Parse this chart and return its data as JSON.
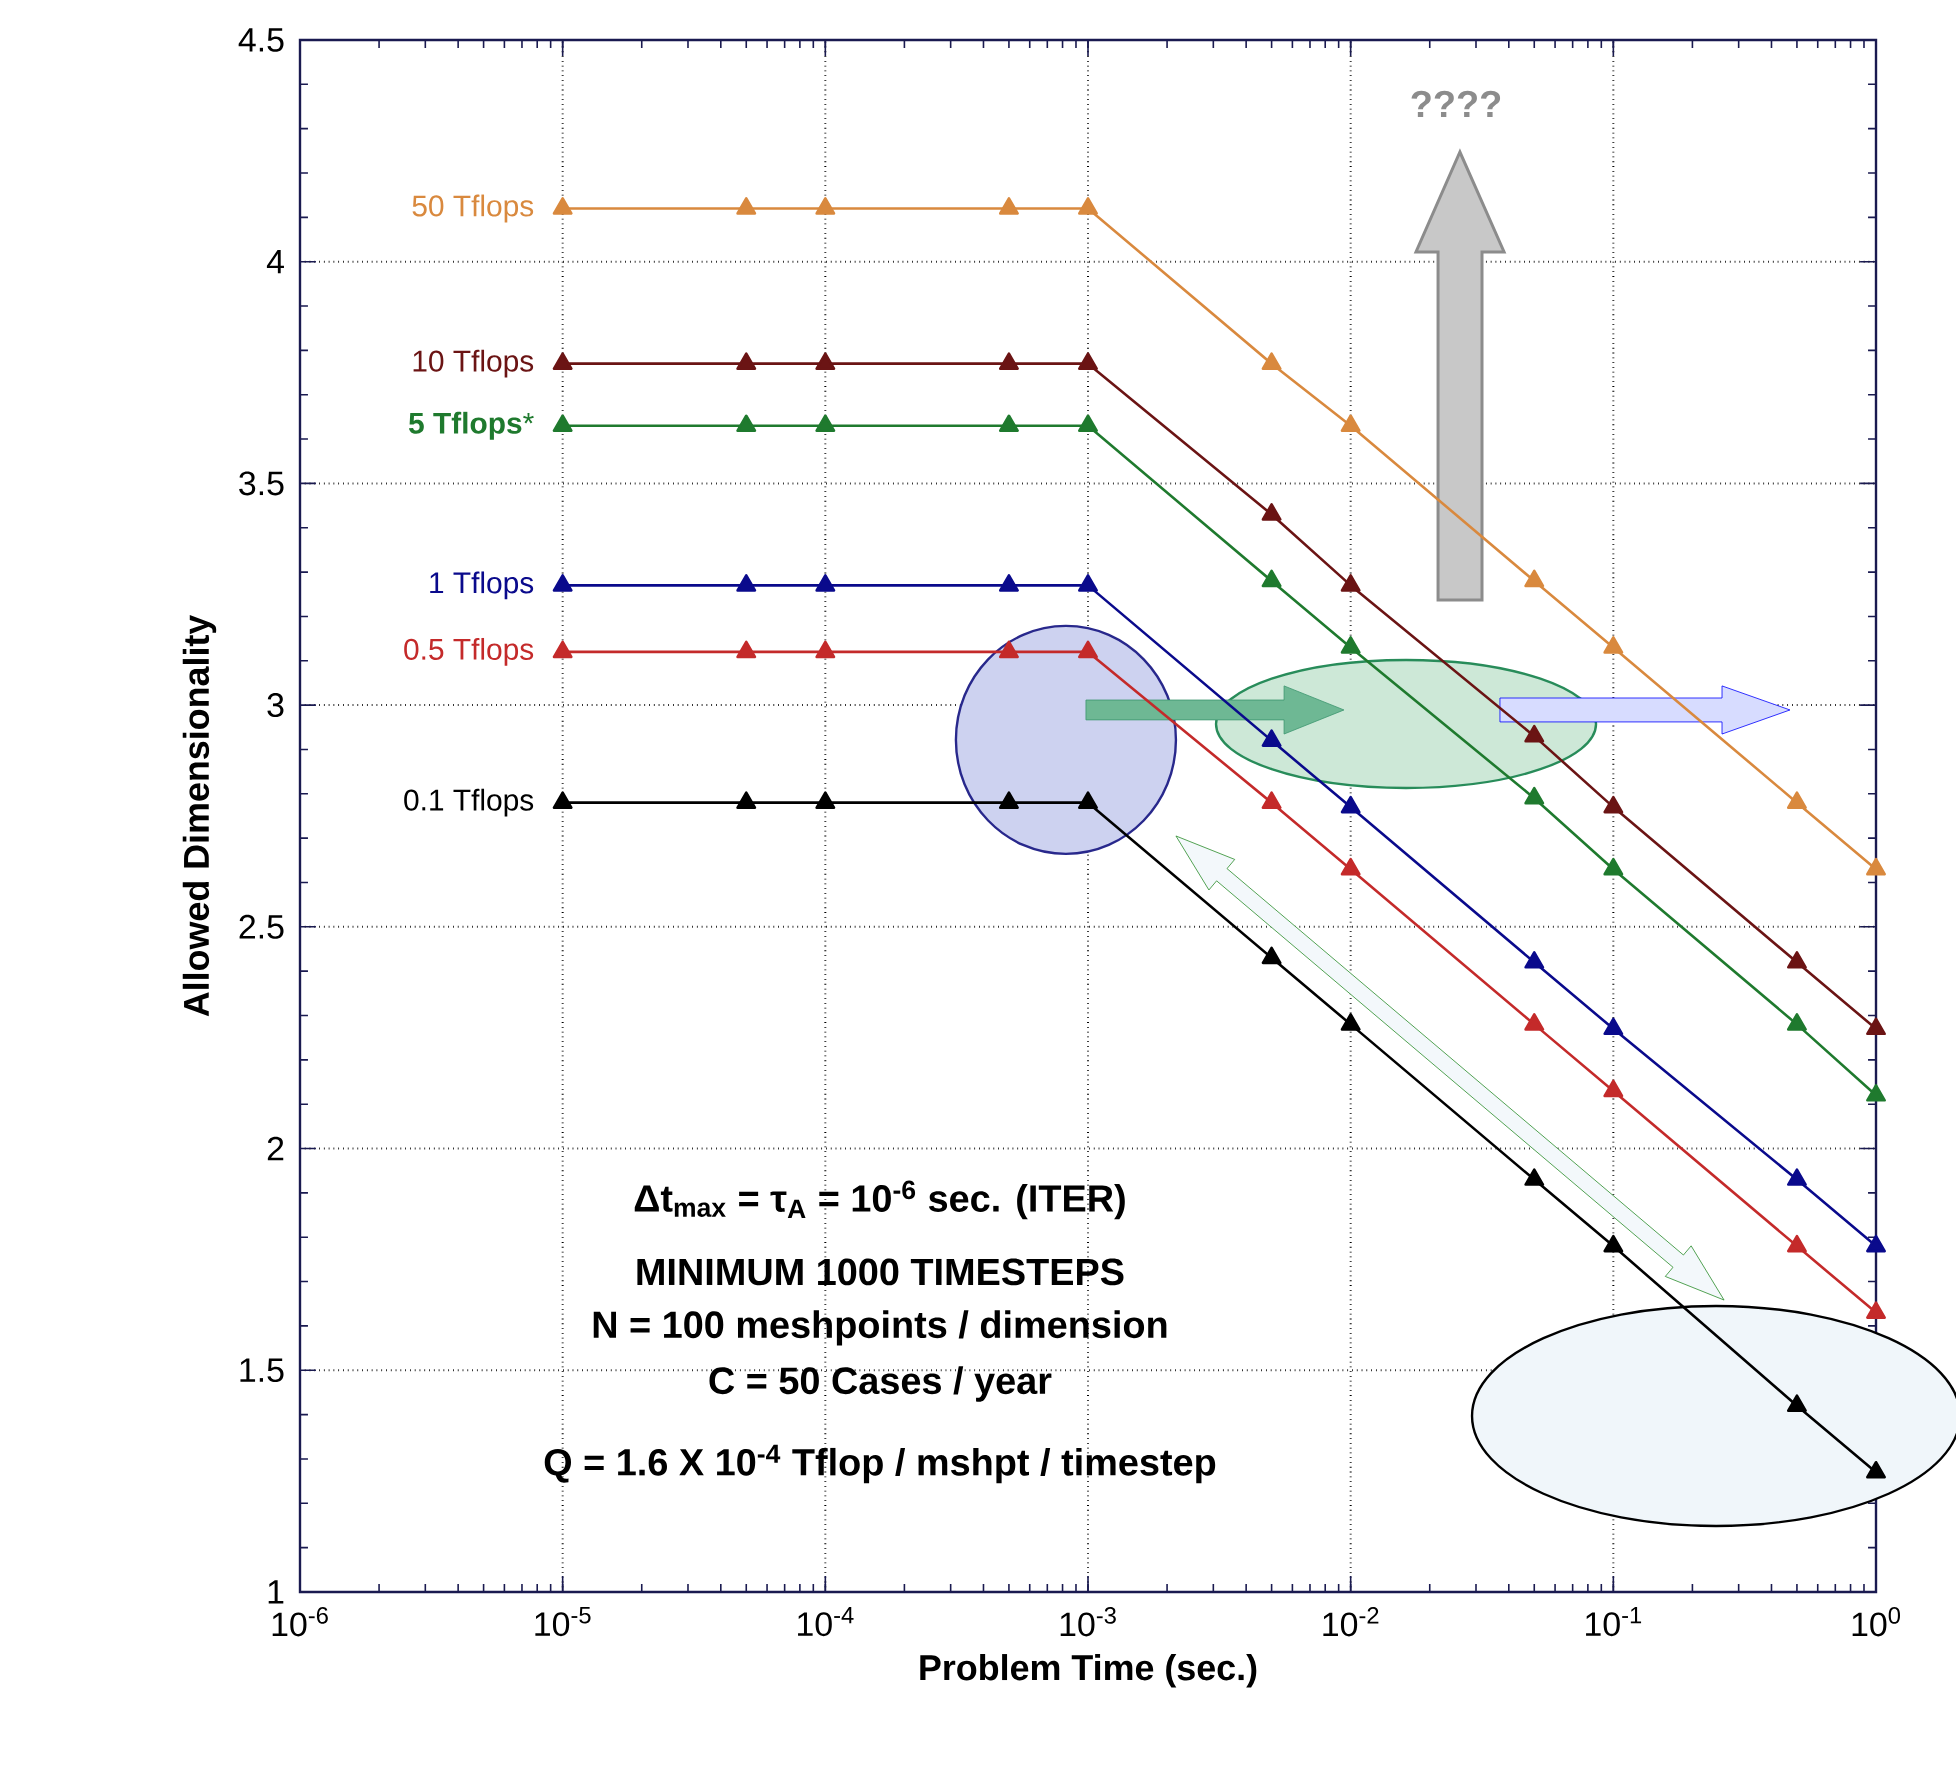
{
  "chart_data": {
    "type": "line",
    "xlabel": "Problem Time (sec.)",
    "ylabel": "Allowed Dimensionality",
    "log": "x",
    "grid": true,
    "marker": "triangle",
    "line_style": "solid",
    "xlim": [
      1e-06,
      1
    ],
    "ylim": [
      1,
      4.5
    ],
    "xticks": [
      {
        "value": 1e-06,
        "label": "10$^{-6}$"
      },
      {
        "value": 1e-05,
        "label": "10$^{-5}$"
      },
      {
        "value": 0.0001,
        "label": "10$^{-4}$"
      },
      {
        "value": 0.001,
        "label": "10$^{-3}$"
      },
      {
        "value": 0.01,
        "label": "10$^{-2}$"
      },
      {
        "value": 0.1,
        "label": "10$^{-1}$"
      },
      {
        "value": 1,
        "label": "10$^{0}$"
      }
    ],
    "yticks": [
      1,
      1.5,
      2,
      2.5,
      3,
      3.5,
      4,
      4.5
    ],
    "x": [
      1e-05,
      5e-05,
      0.0001,
      0.0005,
      0.001,
      0.005,
      0.01,
      0.05,
      0.1,
      0.5,
      1
    ],
    "series": [
      {
        "name": "50 Tflops",
        "color": "#d9893e",
        "values": [
          4.12,
          4.12,
          4.12,
          4.12,
          4.12,
          3.77,
          3.63,
          3.28,
          3.13,
          2.78,
          2.63
        ]
      },
      {
        "name": "10 Tflops",
        "color": "#6b1414",
        "values": [
          3.77,
          3.77,
          3.77,
          3.77,
          3.77,
          3.43,
          3.27,
          2.93,
          2.77,
          2.42,
          2.27
        ]
      },
      {
        "name": "**5 Tflops***",
        "color": "#1f7a2e",
        "values": [
          3.63,
          3.63,
          3.63,
          3.63,
          3.63,
          3.28,
          3.13,
          2.79,
          2.63,
          2.28,
          2.12
        ]
      },
      {
        "name": "1 Tflops",
        "color": "#0a0a8c",
        "values": [
          3.27,
          3.27,
          3.27,
          3.27,
          3.27,
          2.92,
          2.77,
          2.42,
          2.27,
          1.93,
          1.78
        ]
      },
      {
        "name": "0.5 Tflops",
        "color": "#c42a2a",
        "values": [
          3.12,
          3.12,
          3.12,
          3.12,
          3.12,
          2.78,
          2.63,
          2.28,
          2.13,
          1.78,
          1.63
        ]
      },
      {
        "name": "0.1 Tflops",
        "color": "#000000",
        "values": [
          2.78,
          2.78,
          2.78,
          2.78,
          2.78,
          2.43,
          2.28,
          1.93,
          1.78,
          1.42,
          1.27
        ]
      }
    ],
    "annotations": [
      "Δt$_{max}$ = τ$_{A}$ = 10$^{-6}$ sec. (ITER)",
      "MINIMUM 1000 TIMESTEPS",
      "N = 100 meshpoints / dimension",
      "C = 50 Cases / year",
      "Q = 1.6 X 10$^{-4}$ Tflop / mshpt / timestep",
      "????"
    ]
  }
}
